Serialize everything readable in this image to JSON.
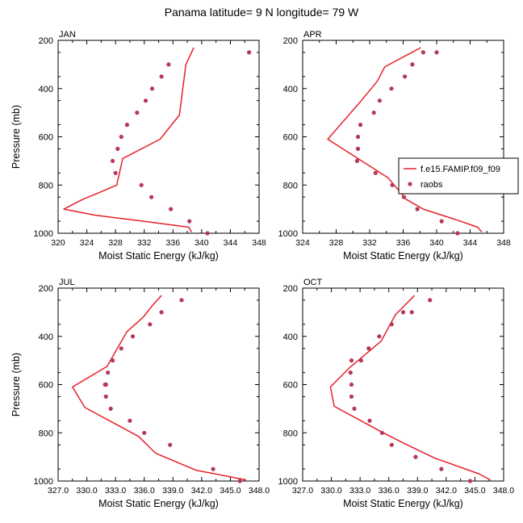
{
  "title": "Panama  latitude= 9 N longitude= 79 W",
  "colors": {
    "model_line": "#e8202a",
    "obs_marker": "#b5385a",
    "axis": "#000000"
  },
  "legend": {
    "panel": "APR",
    "placement": "right",
    "model_label": "f.e15.FAMIP.f09_f09",
    "obs_label": "raobs"
  },
  "chart_data": [
    {
      "type": "line",
      "panel_label": "JAN",
      "xlabel": "Moist Static Energy (kJ/kg)",
      "ylabel": "Pressure (mb)",
      "xlim": [
        320,
        348
      ],
      "ylim": [
        1000,
        200
      ],
      "y_reversed": true,
      "xticks": [
        320,
        324,
        328,
        332,
        336,
        340,
        344,
        348
      ],
      "xtick_labels": [
        "320",
        "324",
        "328",
        "332",
        "336",
        "340",
        "344",
        "348"
      ],
      "yticks": [
        200,
        400,
        600,
        800,
        1000
      ],
      "ytick_labels": [
        "200",
        "400",
        "600",
        "800",
        "1000"
      ],
      "series": [
        {
          "name": "f.e15.FAMIP.f09_f09",
          "kind": "line",
          "x": [
            338.6,
            338.2,
            333.2,
            325.2,
            320.8,
            323.4,
            328.2,
            328.3,
            328.4,
            329.0,
            334.2,
            336.9,
            337.8,
            338.9
          ],
          "y": [
            995,
            975,
            955,
            925,
            900,
            860,
            800,
            780,
            770,
            690,
            610,
            510,
            300,
            230
          ]
        },
        {
          "name": "raobs",
          "kind": "scatter",
          "x": [
            340.8,
            338.3,
            335.7,
            333.0,
            331.6,
            328.0,
            327.6,
            328.3,
            328.8,
            329.6,
            331.0,
            332.2,
            333.1,
            334.4,
            335.4,
            346.6
          ],
          "y": [
            1000,
            950,
            900,
            850,
            800,
            750,
            700,
            650,
            600,
            550,
            500,
            450,
            400,
            350,
            300,
            250
          ]
        }
      ]
    },
    {
      "type": "line",
      "panel_label": "APR",
      "xlabel": "Moist Static Energy (kJ/kg)",
      "ylabel": "",
      "xlim": [
        324,
        348
      ],
      "ylim": [
        1000,
        200
      ],
      "y_reversed": true,
      "xticks": [
        324,
        328,
        332,
        336,
        340,
        344,
        348
      ],
      "xtick_labels": [
        "324",
        "328",
        "332",
        "336",
        "340",
        "344",
        "348"
      ],
      "yticks": [
        200,
        400,
        600,
        800,
        1000
      ],
      "ytick_labels": [
        "200",
        "400",
        "600",
        "800",
        "1000"
      ],
      "series": [
        {
          "name": "f.e15.FAMIP.f09_f09",
          "kind": "line",
          "x": [
            345.4,
            344.9,
            342.0,
            338.4,
            336.4,
            334.2,
            327.0,
            331.0,
            332.9,
            333.8,
            338.1
          ],
          "y": [
            995,
            975,
            940,
            900,
            860,
            770,
            610,
            450,
            370,
            310,
            230
          ]
        },
        {
          "name": "raobs",
          "kind": "scatter",
          "x": [
            342.5,
            340.6,
            337.7,
            336.1,
            334.7,
            332.7,
            330.5,
            330.6,
            330.6,
            330.9,
            332.5,
            333.2,
            334.6,
            336.2,
            337.1,
            338.4,
            340.0
          ],
          "y": [
            1000,
            950,
            900,
            850,
            800,
            750,
            700,
            650,
            600,
            550,
            500,
            450,
            400,
            350,
            300,
            250,
            250
          ]
        }
      ]
    },
    {
      "type": "line",
      "panel_label": "JUL",
      "xlabel": "Moist Static Energy (kJ/kg)",
      "ylabel": "Pressure (mb)",
      "xlim": [
        327,
        348
      ],
      "ylim": [
        1000,
        200
      ],
      "y_reversed": true,
      "xticks": [
        327,
        330,
        333,
        336,
        339,
        342,
        345,
        348
      ],
      "xtick_labels": [
        "327.0",
        "330.0",
        "333.0",
        "336.0",
        "339.0",
        "342.0",
        "345.0",
        "348.0"
      ],
      "yticks": [
        200,
        400,
        600,
        800,
        1000
      ],
      "ytick_labels": [
        "200",
        "400",
        "600",
        "800",
        "1000"
      ],
      "series": [
        {
          "name": "f.e15.FAMIP.f09_f09",
          "kind": "line",
          "x": [
            346.6,
            341.4,
            337.2,
            335.4,
            329.8,
            328.5,
            332.1,
            334.2,
            335.9,
            336.9,
            337.8
          ],
          "y": [
            995,
            955,
            885,
            815,
            695,
            610,
            525,
            380,
            320,
            270,
            230
          ]
        },
        {
          "name": "raobs",
          "kind": "scatter",
          "x": [
            346.0,
            343.2,
            338.7,
            336.0,
            334.5,
            332.5,
            332.0,
            331.9,
            332.0,
            332.2,
            332.7,
            333.6,
            334.8,
            336.6,
            337.8,
            339.9
          ],
          "y": [
            1000,
            950,
            850,
            800,
            750,
            700,
            650,
            600,
            600,
            550,
            500,
            450,
            400,
            350,
            300,
            250
          ]
        }
      ]
    },
    {
      "type": "line",
      "panel_label": "OCT",
      "xlabel": "Moist Static Energy (kJ/kg)",
      "ylabel": "",
      "xlim": [
        327,
        348
      ],
      "ylim": [
        1000,
        200
      ],
      "y_reversed": true,
      "xticks": [
        327,
        330,
        333,
        336,
        339,
        342,
        345,
        348
      ],
      "xtick_labels": [
        "327.0",
        "330.0",
        "333.0",
        "336.0",
        "339.0",
        "342.0",
        "345.0",
        "348.0"
      ],
      "yticks": [
        200,
        400,
        600,
        800,
        1000
      ],
      "ytick_labels": [
        "200",
        "400",
        "600",
        "800",
        "1000"
      ],
      "series": [
        {
          "name": "f.e15.FAMIP.f09_f09",
          "kind": "line",
          "x": [
            346.6,
            345.4,
            340.8,
            337.4,
            335.2,
            330.3,
            329.9,
            331.9,
            335.2,
            336.7,
            338.7
          ],
          "y": [
            995,
            970,
            905,
            840,
            795,
            690,
            610,
            530,
            420,
            310,
            230
          ]
        },
        {
          "name": "raobs",
          "kind": "scatter",
          "x": [
            344.5,
            341.5,
            338.8,
            336.3,
            335.3,
            334.0,
            332.4,
            332.1,
            332.1,
            332.0,
            332.1,
            333.1,
            333.9,
            335.0,
            336.3,
            337.5,
            338.4,
            340.3
          ],
          "y": [
            1000,
            950,
            900,
            850,
            800,
            750,
            700,
            650,
            600,
            550,
            500,
            500,
            450,
            400,
            350,
            300,
            300,
            250
          ]
        }
      ]
    }
  ]
}
